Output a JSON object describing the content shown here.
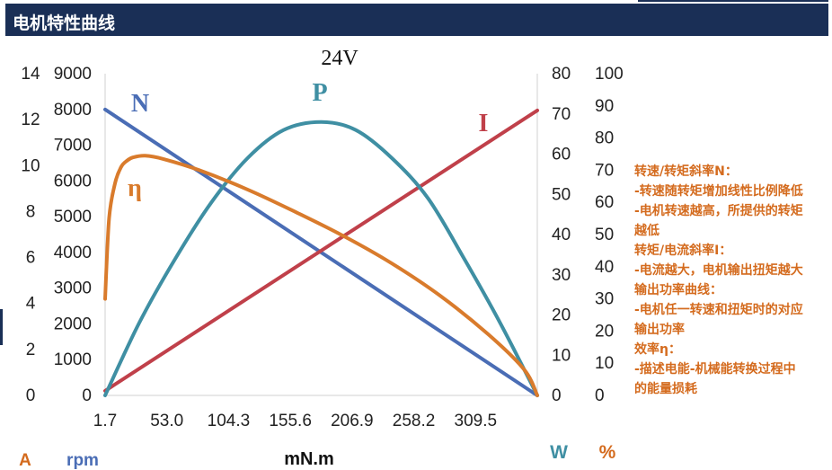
{
  "header": {
    "title": "电机特性曲线"
  },
  "notes": [
    "转速/转矩斜率N：",
    "-转速随转矩增加线性比例降低",
    "-电机转速越高，所提供的转矩",
    "越低",
    "转矩/电流斜率I：",
    "-电流越大，电机输出扭矩越大",
    "输出功率曲线：",
    "-电机任一转速和扭矩时的对应",
    "输出功率",
    "效率η：",
    "-描述电能-机械能转换过程中",
    "的能量损耗"
  ],
  "chart_data": {
    "type": "line",
    "title": "24V",
    "xlabel": "mN.m",
    "x_ticks": [
      "1.7",
      "53.0",
      "104.3",
      "155.6",
      "206.9",
      "258.2",
      "309.5"
    ],
    "xlim": [
      1.7,
      360.8
    ],
    "axes": {
      "current": {
        "unit": "A",
        "range": [
          0,
          14
        ],
        "ticks": [
          "0",
          "2",
          "4",
          "6",
          "8",
          "10",
          "12",
          "14"
        ]
      },
      "speed": {
        "unit": "rpm",
        "range": [
          0,
          9000
        ],
        "ticks": [
          "0",
          "1000",
          "2000",
          "3000",
          "4000",
          "5000",
          "6000",
          "7000",
          "8000",
          "9000"
        ]
      },
      "power": {
        "unit": "W",
        "range": [
          0,
          80
        ],
        "ticks": [
          "0",
          "10",
          "20",
          "30",
          "40",
          "50",
          "60",
          "70",
          "80"
        ]
      },
      "efficiency": {
        "unit": "%",
        "range": [
          0,
          100
        ],
        "ticks": [
          "0",
          "10",
          "20",
          "30",
          "40",
          "50",
          "60",
          "70",
          "80",
          "90",
          "100"
        ]
      }
    },
    "series": [
      {
        "name": "N",
        "axis": "speed",
        "color": "#4a6db5",
        "x": [
          1.7,
          360.8
        ],
        "values": [
          8000,
          0
        ]
      },
      {
        "name": "I",
        "axis": "current",
        "color": "#c0404a",
        "x": [
          1.7,
          360.8
        ],
        "values": [
          0.2,
          12.4
        ]
      },
      {
        "name": "P",
        "axis": "power",
        "color": "#3f8fa3",
        "x": [
          1.7,
          30,
          60,
          90,
          120,
          150,
          181.25,
          210,
          240,
          270,
          300,
          330,
          360.8
        ],
        "values": [
          0,
          18,
          34,
          48,
          59,
          66,
          68,
          66,
          59,
          49,
          34,
          18,
          0
        ]
      },
      {
        "name": "η",
        "axis": "efficiency",
        "color": "#d97b2c",
        "x": [
          1.7,
          5,
          10,
          15,
          20,
          25,
          35,
          50,
          80,
          120,
          160,
          200,
          240,
          280,
          320,
          350,
          360.8
        ],
        "values": [
          30,
          55,
          66,
          71,
          73,
          74,
          74.5,
          73.5,
          70,
          64,
          57,
          49.5,
          41,
          31,
          19,
          8,
          0
        ]
      }
    ]
  }
}
